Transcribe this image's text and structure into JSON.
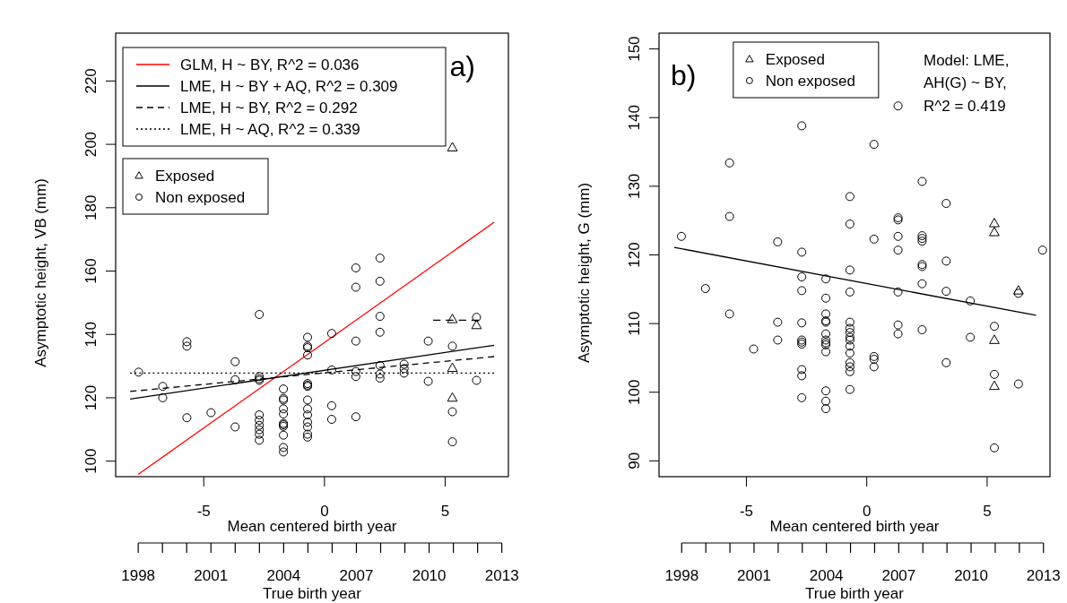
{
  "chart_data": [
    {
      "type": "scatter",
      "xlabel": "Mean centered birth year",
      "ylabel": "Asymptotic height, VB (mm)",
      "x2label": "True birth year",
      "annotations": [
        "a)"
      ],
      "legend": "top left",
      "xlim": [
        -8.65,
        7.62
      ],
      "xticks": [
        -5,
        0,
        5
      ],
      "ylim": [
        95.1,
        235.1
      ],
      "yticks": [
        100,
        120,
        140,
        160,
        180,
        200,
        220
      ],
      "x2lim": [
        1997.07,
        2013.27
      ],
      "x2ticks": [
        1998,
        2001,
        2004,
        2007,
        2010,
        2013
      ],
      "series": [
        {
          "name": "GLM, H ~ BY, R^2 = 0.036",
          "type": "line",
          "color": "#ff0000",
          "line_style": "solid",
          "x": [
            -7.72,
            7.03
          ],
          "values": [
            95.8,
            175.4
          ]
        },
        {
          "name": "LME, H ~ BY + AQ, R^2 = 0.309",
          "type": "line",
          "color": "#000000",
          "line_style": "solid",
          "x": [
            -8.05,
            7.03
          ],
          "values": [
            119.6,
            136.6
          ]
        },
        {
          "name": "LME, H ~ BY, R^2 = 0.292",
          "type": "line",
          "color": "#000000",
          "line_style": "dashed",
          "x": [
            -8.05,
            7.03
          ],
          "values": [
            122.0,
            133.0
          ]
        },
        {
          "name": "LME, H ~ AQ, R^2 = 0.339",
          "type": "line",
          "color": "#000000",
          "line_style": "dotted",
          "x": [
            -8.05,
            7.03
          ],
          "values": [
            127.8,
            127.8
          ]
        },
        {
          "type": "line",
          "color": "#000000",
          "line_style": "dashed",
          "x": [
            4.5,
            6.4
          ],
          "values": [
            144.5,
            144.5
          ]
        },
        {
          "name": "Exposed",
          "type": "scatter",
          "color": "#000000",
          "marker": "triangle",
          "x": [
            5.3,
            5.3,
            5.3,
            5.3,
            6.3
          ],
          "values": [
            199.0,
            144.8,
            129.4,
            120.0,
            142.9
          ]
        },
        {
          "name": "Non exposed",
          "type": "scatter",
          "color": "#000000",
          "marker": "circle",
          "x": [
            -7.7,
            -6.7,
            -6.7,
            -5.7,
            -5.7,
            -5.7,
            -4.7,
            -3.7,
            -3.7,
            -3.7,
            -2.7,
            -2.7,
            -2.7,
            -2.7,
            -2.7,
            -2.7,
            -2.7,
            -2.7,
            -2.7,
            -2.7,
            -1.7,
            -1.7,
            -1.7,
            -1.7,
            -1.7,
            -1.7,
            -1.7,
            -1.7,
            -1.7,
            -1.7,
            -1.7,
            -0.7,
            -0.7,
            -0.7,
            -0.7,
            -0.7,
            -0.7,
            -0.7,
            -0.7,
            -0.7,
            -0.7,
            -0.7,
            -0.7,
            -0.7,
            -0.7,
            0.3,
            0.3,
            0.3,
            0.3,
            1.3,
            1.3,
            1.3,
            1.3,
            1.3,
            1.3,
            2.3,
            2.3,
            2.3,
            2.3,
            2.3,
            2.3,
            2.3,
            3.3,
            3.3,
            3.3,
            4.3,
            4.3,
            5.3,
            5.3,
            5.3,
            6.3,
            6.3
          ],
          "values": [
            128.1,
            123.6,
            120.0,
            137.7,
            136.3,
            113.7,
            115.3,
            131.4,
            125.7,
            110.8,
            146.3,
            126.7,
            126.0,
            125.5,
            114.6,
            112.9,
            111.3,
            109.9,
            108.5,
            106.6,
            122.8,
            119.8,
            119.3,
            116.5,
            114.9,
            111.9,
            111.5,
            111.0,
            108.2,
            104.3,
            102.9,
            139.1,
            136.3,
            135.8,
            133.5,
            124.5,
            124.0,
            123.6,
            119.3,
            116.5,
            114.6,
            112.3,
            110.8,
            108.5,
            107.6,
            140.3,
            128.8,
            117.5,
            113.2,
            161.0,
            154.9,
            137.9,
            128.3,
            126.7,
            114.0,
            164.1,
            156.8,
            145.7,
            140.7,
            130.2,
            127.5,
            126.2,
            130.6,
            129.2,
            127.8,
            137.9,
            125.2,
            136.3,
            115.6,
            106.1,
            145.4,
            125.5
          ]
        }
      ]
    },
    {
      "type": "scatter",
      "xlabel": "Mean centered birth year",
      "ylabel": "Asymptotic height, G (mm)",
      "x2label": "True birth year",
      "annotations": [
        "b)",
        "Model: LME,",
        "AH(G) ~ BY,",
        "R^2 = 0.419"
      ],
      "legend": "top",
      "xlim": [
        -8.63,
        7.61
      ],
      "xticks": [
        -5,
        0,
        5
      ],
      "ylim": [
        87.7,
        152.3
      ],
      "yticks": [
        90,
        100,
        110,
        120,
        130,
        140,
        150
      ],
      "x2lim": [
        1997.06,
        2013.27
      ],
      "x2ticks": [
        1998,
        2001,
        2004,
        2007,
        2010,
        2013
      ],
      "series": [
        {
          "type": "line",
          "color": "#000000",
          "line_style": "solid",
          "x": [
            -8.0,
            7.03
          ],
          "values": [
            121.1,
            111.2
          ]
        },
        {
          "name": "Exposed",
          "type": "scatter",
          "color": "#000000",
          "marker": "triangle",
          "x": [
            5.3,
            5.3,
            5.3,
            5.3,
            6.3
          ],
          "values": [
            124.6,
            123.3,
            107.6,
            100.9,
            114.8
          ]
        },
        {
          "name": "Non exposed",
          "type": "scatter",
          "color": "#000000",
          "marker": "circle",
          "x": [
            -7.7,
            -6.7,
            -5.7,
            -5.7,
            -5.7,
            -4.7,
            -3.7,
            -3.7,
            -3.7,
            -2.7,
            -2.7,
            -2.7,
            -2.7,
            -2.7,
            -2.7,
            -2.7,
            -2.7,
            -2.7,
            -2.7,
            -2.7,
            -1.7,
            -1.7,
            -1.7,
            -1.7,
            -1.7,
            -1.7,
            -1.7,
            -1.7,
            -1.7,
            -1.7,
            -1.7,
            -1.7,
            -1.7,
            -0.7,
            -0.7,
            -0.7,
            -0.7,
            -0.7,
            -0.7,
            -0.7,
            -0.7,
            -0.7,
            -0.7,
            -0.7,
            -0.7,
            -0.7,
            -0.7,
            -0.7,
            0.3,
            0.3,
            0.3,
            0.3,
            0.3,
            1.3,
            1.3,
            1.3,
            1.3,
            1.3,
            1.3,
            1.3,
            1.3,
            2.3,
            2.3,
            2.3,
            2.3,
            2.3,
            2.3,
            2.3,
            2.3,
            3.3,
            3.3,
            3.3,
            3.3,
            4.3,
            4.3,
            5.3,
            5.3,
            5.3,
            6.3,
            6.3,
            7.3
          ],
          "values": [
            122.7,
            115.1,
            133.4,
            125.6,
            111.4,
            106.3,
            121.9,
            110.2,
            107.6,
            138.8,
            120.4,
            116.8,
            114.8,
            110.1,
            107.6,
            107.3,
            107.0,
            103.3,
            102.4,
            99.2,
            116.5,
            113.7,
            111.4,
            110.4,
            110.2,
            108.5,
            107.6,
            107.2,
            106.9,
            105.9,
            100.2,
            98.7,
            97.6,
            128.5,
            124.5,
            117.8,
            114.6,
            110.2,
            109.3,
            108.7,
            108.0,
            107.6,
            106.7,
            105.7,
            104.3,
            103.7,
            103.0,
            100.4,
            136.1,
            122.3,
            105.2,
            104.8,
            103.7,
            141.7,
            125.4,
            125.1,
            122.7,
            120.7,
            114.6,
            109.8,
            108.5,
            130.7,
            122.8,
            122.4,
            122.0,
            118.6,
            118.3,
            115.8,
            109.1,
            127.5,
            119.1,
            114.7,
            104.3,
            113.3,
            108.0,
            109.6,
            102.6,
            91.9,
            114.4,
            101.2,
            120.7
          ]
        }
      ]
    }
  ]
}
